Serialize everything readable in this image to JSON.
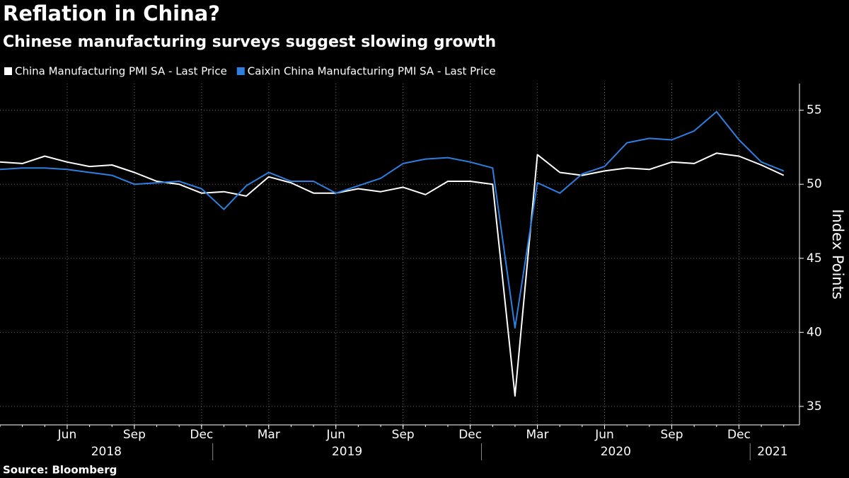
{
  "chart_data": {
    "type": "line",
    "title": "Reflation in China?",
    "subtitle": "Chinese manufacturing surveys suggest slowing growth",
    "source": "Source: Bloomberg",
    "y_axis_label": "Index Points",
    "x": [
      "2018-03",
      "2018-04",
      "2018-05",
      "2018-06",
      "2018-07",
      "2018-08",
      "2018-09",
      "2018-10",
      "2018-11",
      "2018-12",
      "2019-01",
      "2019-02",
      "2019-03",
      "2019-04",
      "2019-05",
      "2019-06",
      "2019-07",
      "2019-08",
      "2019-09",
      "2019-10",
      "2019-11",
      "2019-12",
      "2020-01",
      "2020-02",
      "2020-03",
      "2020-04",
      "2020-05",
      "2020-06",
      "2020-07",
      "2020-08",
      "2020-09",
      "2020-10",
      "2020-11",
      "2020-12",
      "2021-01",
      "2021-02"
    ],
    "series": [
      {
        "name": "China Manufacturing PMI SA - Last Price",
        "color": "#ffffff",
        "values": [
          51.5,
          51.4,
          51.9,
          51.5,
          51.2,
          51.3,
          50.8,
          50.2,
          50.0,
          49.4,
          49.5,
          49.2,
          50.5,
          50.1,
          49.4,
          49.4,
          49.7,
          49.5,
          49.8,
          49.3,
          50.2,
          50.2,
          50.0,
          35.7,
          52.0,
          50.8,
          50.6,
          50.9,
          51.1,
          51.0,
          51.5,
          51.4,
          52.1,
          51.9,
          51.3,
          50.6
        ]
      },
      {
        "name": "Caixin China Manufacturing PMI SA - Last Price",
        "color": "#2d7fe0",
        "values": [
          51.0,
          51.1,
          51.1,
          51.0,
          50.8,
          50.6,
          50.0,
          50.1,
          50.2,
          49.7,
          48.3,
          49.9,
          50.8,
          50.2,
          50.2,
          49.4,
          49.9,
          50.4,
          51.4,
          51.7,
          51.8,
          51.5,
          51.1,
          40.3,
          50.1,
          49.4,
          50.7,
          51.2,
          52.8,
          53.1,
          53.0,
          53.6,
          54.9,
          53.0,
          51.5,
          50.9
        ]
      }
    ],
    "xticks": [
      {
        "value": "2018-06",
        "label": "Jun"
      },
      {
        "value": "2018-09",
        "label": "Sep"
      },
      {
        "value": "2018-12",
        "label": "Dec"
      },
      {
        "value": "2019-03",
        "label": "Mar"
      },
      {
        "value": "2019-06",
        "label": "Jun"
      },
      {
        "value": "2019-09",
        "label": "Sep"
      },
      {
        "value": "2019-12",
        "label": "Dec"
      },
      {
        "value": "2020-03",
        "label": "Mar"
      },
      {
        "value": "2020-06",
        "label": "Jun"
      },
      {
        "value": "2020-09",
        "label": "Sep"
      },
      {
        "value": "2020-12",
        "label": "Dec"
      }
    ],
    "years": [
      "2018",
      "2019",
      "2020",
      "2021"
    ],
    "ylim": [
      33.75,
      56.8
    ],
    "yticks": [
      35,
      40,
      45,
      50,
      55
    ],
    "grid": true
  }
}
